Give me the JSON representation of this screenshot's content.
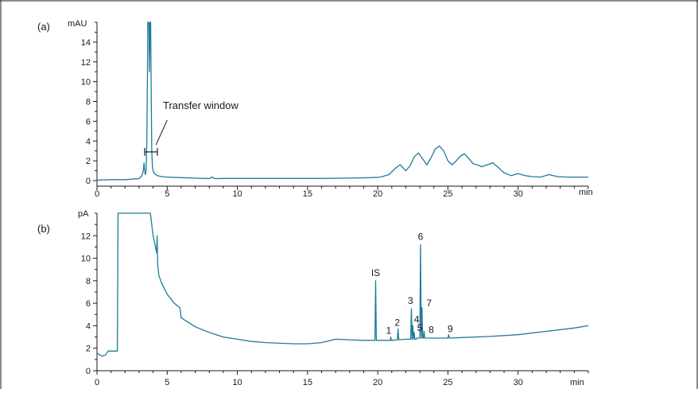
{
  "chart_data": [
    {
      "type": "line",
      "panel_label": "(a)",
      "ylabel": "mAU",
      "xlabel": "min",
      "xlim": [
        0,
        35
      ],
      "ylim": [
        0,
        16
      ],
      "xticks": [
        0,
        5,
        10,
        15,
        20,
        25,
        30
      ],
      "yticks": [
        0,
        2,
        4,
        6,
        8,
        10,
        12,
        14
      ],
      "annotation": "Transfer window",
      "transfer_window": [
        3.4,
        4.3
      ],
      "series": [
        {
          "x": [
            0,
            1,
            2,
            3,
            3.2,
            3.3,
            3.35,
            3.4,
            3.45,
            3.5,
            3.55,
            3.6,
            3.62,
            3.66,
            3.7,
            3.74,
            3.78,
            3.82,
            3.86,
            3.9,
            3.95,
            4.0,
            4.1,
            4.3,
            4.6,
            5.0,
            6.0,
            7.0,
            8.0,
            8.2,
            8.4,
            9.0,
            10.0,
            12.0,
            14.0,
            16.0,
            18.0,
            19.5,
            20.2,
            20.8,
            21.3,
            21.6,
            22.0,
            22.3,
            22.6,
            22.9,
            23.2,
            23.5,
            23.8,
            24.1,
            24.4,
            24.7,
            25.0,
            25.3,
            25.6,
            25.9,
            26.2,
            26.5,
            26.8,
            27.1,
            27.4,
            27.8,
            28.2,
            28.6,
            29.0,
            29.5,
            30.0,
            30.5,
            31.0,
            31.6,
            32.2,
            32.8,
            33.5,
            34.2,
            35.0
          ],
          "y": [
            0.05,
            0.1,
            0.1,
            0.2,
            0.5,
            1.0,
            1.8,
            1.0,
            0.6,
            1.0,
            4.0,
            12.0,
            16.0,
            16.0,
            16.0,
            11.0,
            16.0,
            16.0,
            9.0,
            3.0,
            1.5,
            1.0,
            0.7,
            0.5,
            0.4,
            0.35,
            0.3,
            0.25,
            0.2,
            0.35,
            0.2,
            0.22,
            0.22,
            0.22,
            0.22,
            0.22,
            0.25,
            0.3,
            0.35,
            0.6,
            1.3,
            1.6,
            1.0,
            1.5,
            2.4,
            2.8,
            2.2,
            1.6,
            2.3,
            3.2,
            3.5,
            3.0,
            2.0,
            1.6,
            2.0,
            2.5,
            2.7,
            2.2,
            1.7,
            1.6,
            1.4,
            1.6,
            1.8,
            1.3,
            0.8,
            0.5,
            0.7,
            0.5,
            0.4,
            0.35,
            0.6,
            0.4,
            0.35,
            0.35,
            0.35
          ]
        }
      ]
    },
    {
      "type": "line",
      "panel_label": "(b)",
      "ylabel": "pA",
      "xlabel": "min",
      "xlim": [
        0,
        35
      ],
      "ylim": [
        0,
        14
      ],
      "xticks": [
        0,
        5,
        10,
        15,
        20,
        25,
        30
      ],
      "yticks": [
        0,
        2,
        4,
        6,
        8,
        10,
        12
      ],
      "series": [
        {
          "x": [
            0,
            0.2,
            0.4,
            0.6,
            0.8,
            1.0,
            1.3,
            1.45,
            1.5,
            1.55,
            3.8,
            4.0,
            4.25,
            4.28,
            4.32,
            4.4,
            4.6,
            5.0,
            5.5,
            5.9,
            5.95,
            6.0,
            6.5,
            7.0,
            8.0,
            9.0,
            10.0,
            11.0,
            12.0,
            13.0,
            14.0,
            15.0,
            16.0,
            17.0,
            18.0,
            19.0,
            19.8,
            19.85,
            19.9,
            20.5,
            20.9,
            20.93,
            20.96,
            21.4,
            21.45,
            21.5,
            22.0,
            22.35,
            22.4,
            22.45,
            22.5,
            22.55,
            22.6,
            22.65,
            22.7,
            22.75,
            22.8,
            22.9,
            23.0,
            23.05,
            23.1,
            23.15,
            23.2,
            23.25,
            23.3,
            23.35,
            23.45,
            23.5,
            23.55,
            23.6,
            23.7,
            24.0,
            25.0,
            25.05,
            25.1,
            26.0,
            28.0,
            30.0,
            32.0,
            34.0,
            35.0
          ],
          "y": [
            1.6,
            1.4,
            1.3,
            1.4,
            1.75,
            1.75,
            1.75,
            1.75,
            14.0,
            14.0,
            14.0,
            12.0,
            10.5,
            12.0,
            9.5,
            8.5,
            7.8,
            6.8,
            6.0,
            5.6,
            5.2,
            4.7,
            4.3,
            3.9,
            3.4,
            3.0,
            2.8,
            2.6,
            2.5,
            2.45,
            2.4,
            2.4,
            2.5,
            2.8,
            2.75,
            2.7,
            2.7,
            8.0,
            2.7,
            2.7,
            2.7,
            3.0,
            2.7,
            2.75,
            3.7,
            2.75,
            2.8,
            2.8,
            5.5,
            2.8,
            4.0,
            2.8,
            3.4,
            2.8,
            2.8,
            2.8,
            2.9,
            2.9,
            2.9,
            11.2,
            2.9,
            5.6,
            2.9,
            2.9,
            3.5,
            2.9,
            2.9,
            2.9,
            2.9,
            2.9,
            2.9,
            2.9,
            2.9,
            3.2,
            2.9,
            2.95,
            3.05,
            3.2,
            3.5,
            3.8,
            4.0
          ]
        }
      ],
      "peak_labels": [
        {
          "text": "IS",
          "x": 19.85,
          "y": 8.0
        },
        {
          "text": "1",
          "x": 20.95,
          "y": 3.0
        },
        {
          "text": "2",
          "x": 21.45,
          "y": 3.7
        },
        {
          "text": "3",
          "x": 22.45,
          "y": 5.5
        },
        {
          "text": "4",
          "x": 22.55,
          "y": 4.0
        },
        {
          "text": "5",
          "x": 22.65,
          "y": 3.4
        },
        {
          "text": "6",
          "x": 23.05,
          "y": 11.2
        },
        {
          "text": "7",
          "x": 23.15,
          "y": 5.6
        },
        {
          "text": "8",
          "x": 23.3,
          "y": 3.5
        },
        {
          "text": "9",
          "x": 25.05,
          "y": 3.2
        }
      ]
    }
  ]
}
